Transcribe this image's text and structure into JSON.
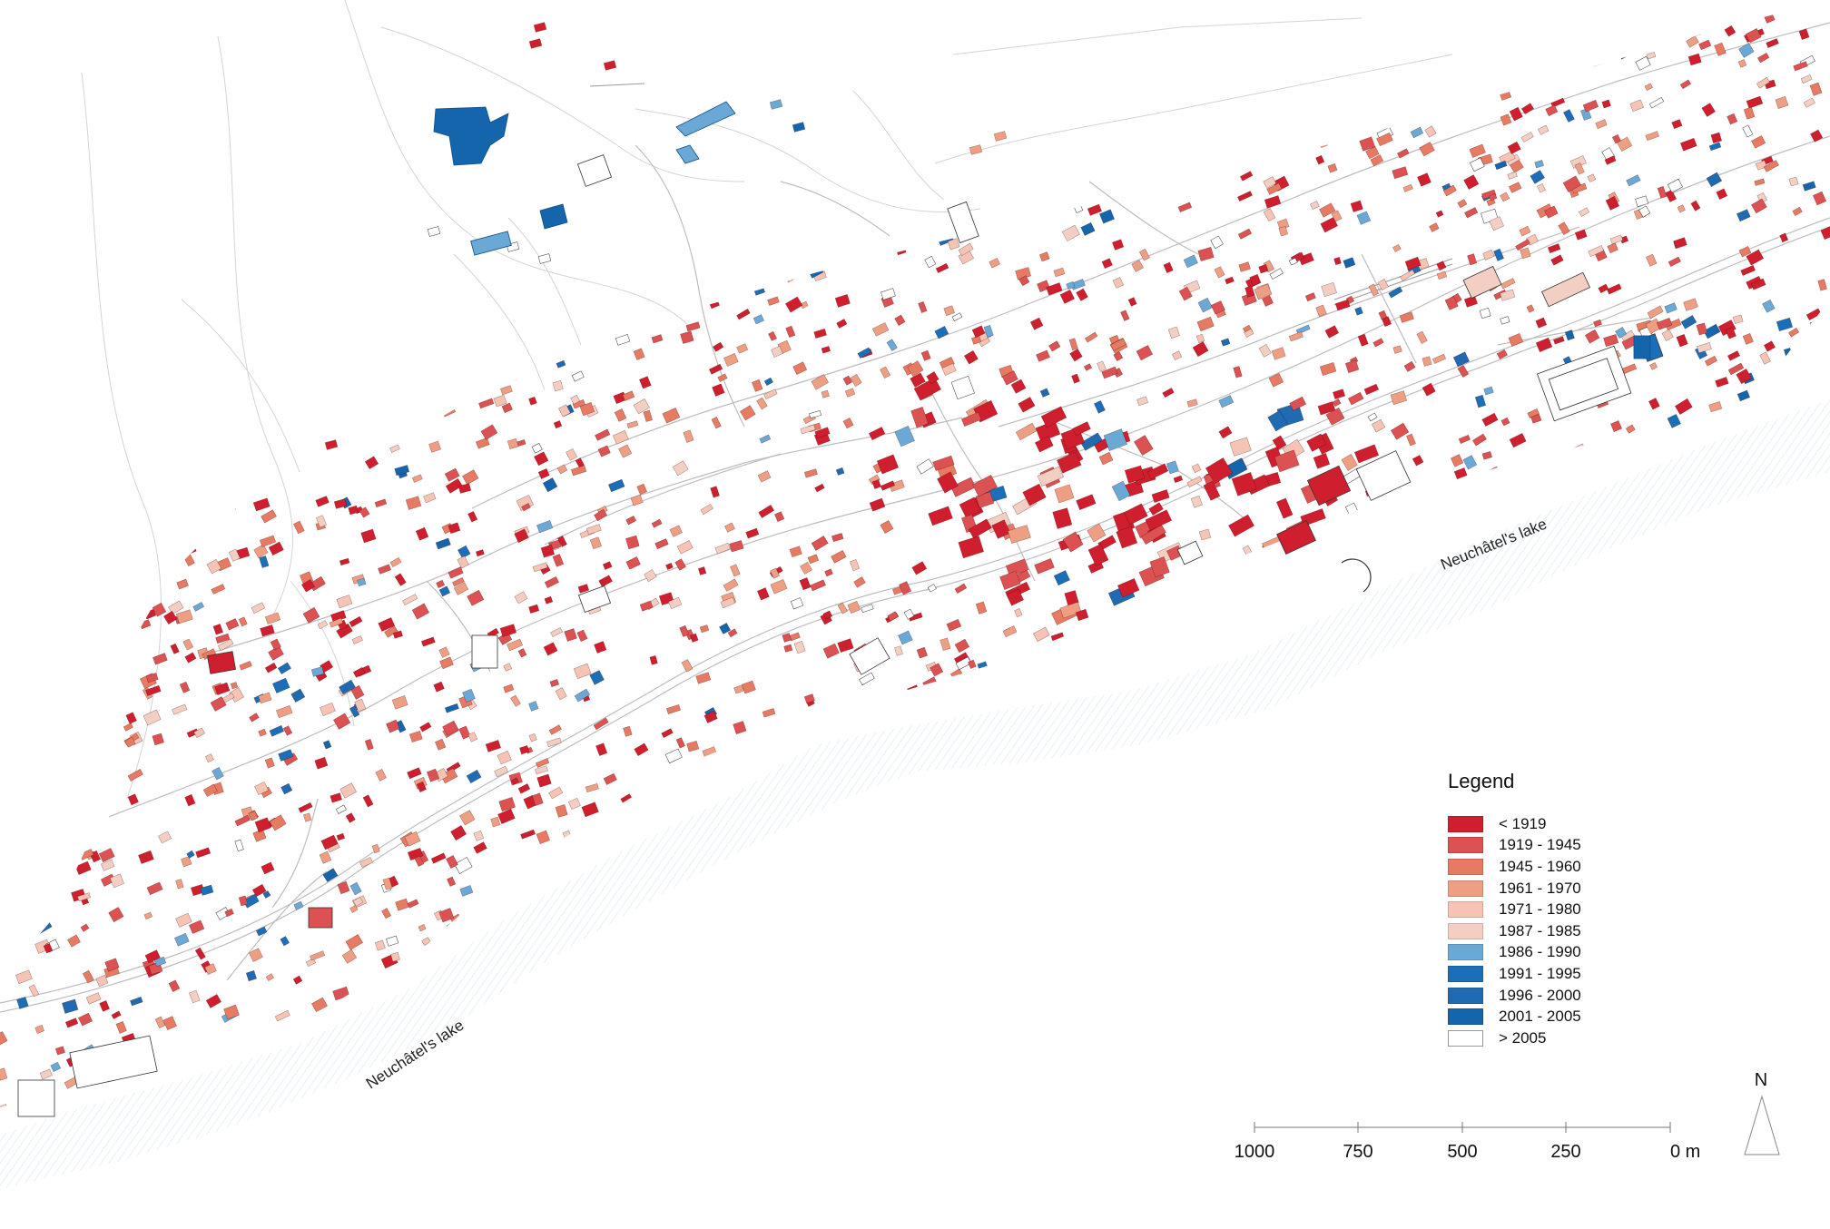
{
  "lake_labels": [
    "Neuchâtel's lake",
    "Neuchâtel's lake"
  ],
  "legend": {
    "title": "Legend",
    "items": [
      {
        "label": "< 1919",
        "color": "#cf1f2e"
      },
      {
        "label": "1919 - 1945",
        "color": "#dc5151"
      },
      {
        "label": "1945 - 1960",
        "color": "#e67a63"
      },
      {
        "label": "1961 - 1970",
        "color": "#ee9f83"
      },
      {
        "label": "1971 - 1980",
        "color": "#f5c4b4"
      },
      {
        "label": "1987 - 1985",
        "color": "#f2cfc2"
      },
      {
        "label": "1986 - 1990",
        "color": "#6aa9d6"
      },
      {
        "label": "1991 - 1995",
        "color": "#1b6fb8"
      },
      {
        "label": "1996 - 2000",
        "color": "#1f6ab0"
      },
      {
        "label": "2001 - 2005",
        "color": "#1565ad"
      },
      {
        "label": "> 2005",
        "color": "#ffffff"
      }
    ]
  },
  "scale_bar": {
    "labels": [
      "1000",
      "750",
      "500",
      "250",
      "0 m"
    ]
  },
  "north_arrow": {
    "label": "N"
  }
}
